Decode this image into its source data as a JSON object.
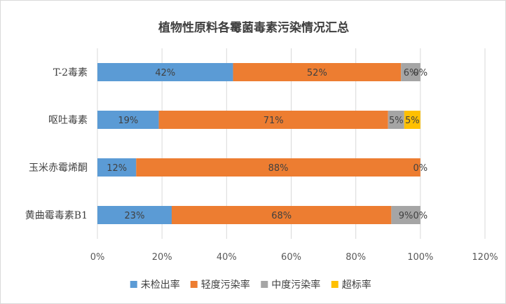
{
  "chart_data": {
    "type": "bar",
    "orientation": "horizontal",
    "stacked": true,
    "title": "植物性原料各霉菌毒素污染情况汇总",
    "categories": [
      "T-2毒素",
      "呕吐毒素",
      "玉米赤霉烯酮",
      "黄曲霉毒素B1"
    ],
    "series": [
      {
        "name": "未检出率",
        "color": "#5b9bd5",
        "values": [
          42,
          19,
          12,
          23
        ],
        "labels": [
          "42%",
          "19%",
          "12%",
          "23%"
        ]
      },
      {
        "name": "轻度污染率",
        "color": "#ed7d31",
        "values": [
          52,
          71,
          88,
          68
        ],
        "labels": [
          "52%",
          "71%",
          "88%",
          "68%"
        ]
      },
      {
        "name": "中度污染率",
        "color": "#a5a5a5",
        "values": [
          6,
          5,
          0,
          9
        ],
        "labels": [
          "6%",
          "5%",
          "0%",
          "9%"
        ]
      },
      {
        "name": "超标率",
        "color": "#ffc000",
        "values": [
          0,
          5,
          0,
          0
        ],
        "labels": [
          "0%",
          "5%",
          "",
          "0%"
        ]
      }
    ],
    "xlim": [
      0,
      120
    ],
    "xticks": [
      0,
      20,
      40,
      60,
      80,
      100,
      120
    ],
    "xtick_labels": [
      "0%",
      "20%",
      "40%",
      "60%",
      "80%",
      "100%",
      "120%"
    ],
    "grid": true,
    "legend_position": "bottom"
  }
}
